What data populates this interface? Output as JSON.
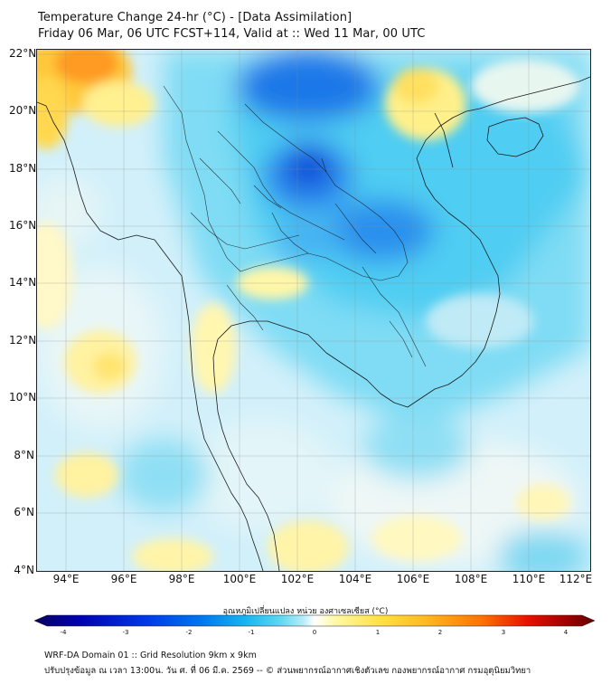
{
  "header": {
    "title_line1": "Temperature Change 24-hr (°C) - [Data Assimilation]",
    "title_line2": "Friday 06 Mar, 06 UTC FCST+114, Valid at :: Wed 11 Mar, 00 UTC"
  },
  "map": {
    "lat_labels": [
      "22°N",
      "20°N",
      "18°N",
      "16°N",
      "14°N",
      "12°N",
      "10°N",
      "8°N",
      "6°N",
      "4°N"
    ],
    "lon_labels": [
      "94°E",
      "96°E",
      "98°E",
      "100°E",
      "102°E",
      "104°E",
      "106°E",
      "108°E",
      "110°E",
      "112°E"
    ]
  },
  "colorbar": {
    "title": "อุณหภูมิเปลี่ยนแปลง หน่วย องศาเซลเซียส (°C)",
    "ticks": [
      "-4",
      "-3",
      "-2",
      "-1",
      "0",
      "1",
      "2",
      "3",
      "4"
    ],
    "colors": [
      "#080060",
      "#0000b0",
      "#0038e8",
      "#0078f0",
      "#18b8f0",
      "#60d8f0",
      "#b8ecf8",
      "#ffffff",
      "#fff8a0",
      "#ffe040",
      "#ffb820",
      "#ff7000",
      "#e81000",
      "#a00000",
      "#600000"
    ]
  },
  "footer": {
    "line1": "WRF-DA Domain 01 :: Grid Resolution 9km x 9km",
    "line2": "ปรับปรุงข้อมูล ณ เวลา 13:00น. วัน ศ. ที่ 06 มี.ค. 2569 -- © ส่วนพยากรณ์อากาศเชิงตัวเลข กองพยากรณ์อากาศ กรมอุตุนิยมวิทยา"
  }
}
